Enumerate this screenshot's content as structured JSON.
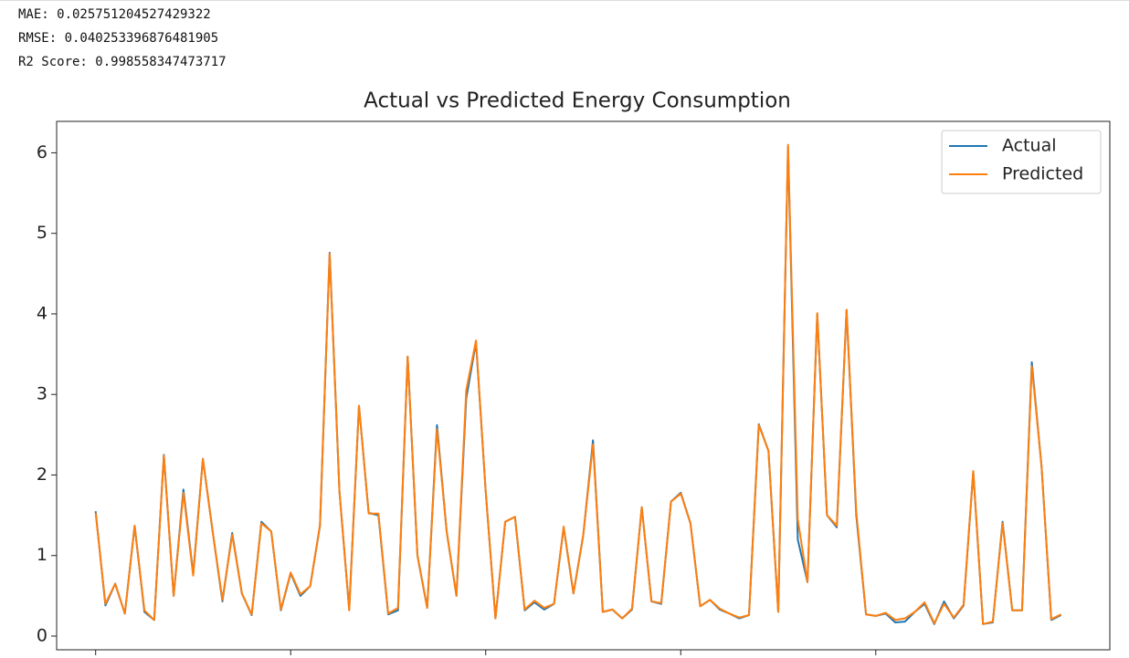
{
  "output_lines": [
    "MAE: 0.025751204527429322",
    "RMSE: 0.040253396876481905",
    "R2 Score: 0.998558347473717"
  ],
  "chart_data": {
    "type": "line",
    "title": "Actual vs Predicted Energy Consumption",
    "x": [
      0,
      1,
      2,
      3,
      4,
      5,
      6,
      7,
      8,
      9,
      10,
      11,
      12,
      13,
      14,
      15,
      16,
      17,
      18,
      19,
      20,
      21,
      22,
      23,
      24,
      25,
      26,
      27,
      28,
      29,
      30,
      31,
      32,
      33,
      34,
      35,
      36,
      37,
      38,
      39,
      40,
      41,
      42,
      43,
      44,
      45,
      46,
      47,
      48,
      49,
      50,
      51,
      52,
      53,
      54,
      55,
      56,
      57,
      58,
      59,
      60,
      61,
      62,
      63,
      64,
      65,
      66,
      67,
      68,
      69,
      70,
      71,
      72,
      73,
      74,
      75,
      76,
      77,
      78,
      79,
      80,
      81,
      82,
      83,
      84,
      85,
      86,
      87,
      88,
      89,
      90,
      91,
      92,
      93,
      94,
      95,
      96,
      97,
      98,
      99
    ],
    "series": [
      {
        "name": "Actual",
        "color": "#1f77b4",
        "values": [
          1.55,
          0.38,
          0.65,
          0.28,
          1.37,
          0.3,
          0.2,
          2.25,
          0.5,
          1.82,
          0.77,
          2.2,
          1.3,
          0.43,
          1.28,
          0.53,
          0.26,
          1.42,
          1.3,
          0.32,
          0.78,
          0.5,
          0.62,
          1.37,
          4.76,
          1.8,
          0.33,
          2.86,
          1.53,
          1.5,
          0.27,
          0.32,
          3.47,
          1.0,
          0.35,
          2.62,
          1.3,
          0.5,
          2.95,
          3.65,
          1.8,
          0.22,
          1.42,
          1.48,
          0.32,
          0.42,
          0.33,
          0.4,
          1.35,
          0.53,
          1.25,
          2.43,
          0.3,
          0.33,
          0.22,
          0.33,
          1.6,
          0.43,
          0.4,
          1.67,
          1.78,
          1.4,
          0.37,
          0.45,
          0.33,
          0.28,
          0.22,
          0.26,
          2.63,
          2.3,
          0.3,
          6.07,
          1.2,
          0.67,
          4.0,
          1.5,
          1.35,
          4.05,
          1.5,
          0.27,
          0.25,
          0.28,
          0.17,
          0.18,
          0.3,
          0.4,
          0.15,
          0.43,
          0.22,
          0.38,
          2.04,
          0.15,
          0.17,
          1.42,
          0.32,
          0.32,
          3.4,
          2.1,
          0.2,
          0.26
        ]
      },
      {
        "name": "Predicted",
        "color": "#ff7f0e",
        "values": [
          1.53,
          0.4,
          0.65,
          0.28,
          1.37,
          0.32,
          0.2,
          2.24,
          0.5,
          1.78,
          0.75,
          2.2,
          1.3,
          0.45,
          1.26,
          0.53,
          0.27,
          1.4,
          1.3,
          0.33,
          0.79,
          0.52,
          0.62,
          1.38,
          4.75,
          1.8,
          0.32,
          2.86,
          1.52,
          1.52,
          0.28,
          0.35,
          3.47,
          1.0,
          0.35,
          2.57,
          1.3,
          0.5,
          3.05,
          3.67,
          1.8,
          0.22,
          1.42,
          1.48,
          0.33,
          0.44,
          0.35,
          0.4,
          1.36,
          0.53,
          1.25,
          2.38,
          0.3,
          0.33,
          0.22,
          0.34,
          1.6,
          0.43,
          0.41,
          1.67,
          1.77,
          1.4,
          0.37,
          0.45,
          0.34,
          0.28,
          0.23,
          0.26,
          2.62,
          2.3,
          0.3,
          6.1,
          1.45,
          0.67,
          4.01,
          1.5,
          1.37,
          4.05,
          1.55,
          0.27,
          0.25,
          0.29,
          0.2,
          0.22,
          0.3,
          0.42,
          0.16,
          0.4,
          0.23,
          0.39,
          2.05,
          0.15,
          0.18,
          1.4,
          0.32,
          0.32,
          3.35,
          2.1,
          0.21,
          0.27
        ]
      }
    ],
    "xlim": [
      -4,
      104
    ],
    "xticks": [
      0,
      20,
      40,
      60,
      80
    ],
    "ylim": [
      -0.17,
      6.39
    ],
    "yticks": [
      0,
      1,
      2,
      3,
      4,
      5,
      6
    ],
    "legend": "upper right"
  }
}
